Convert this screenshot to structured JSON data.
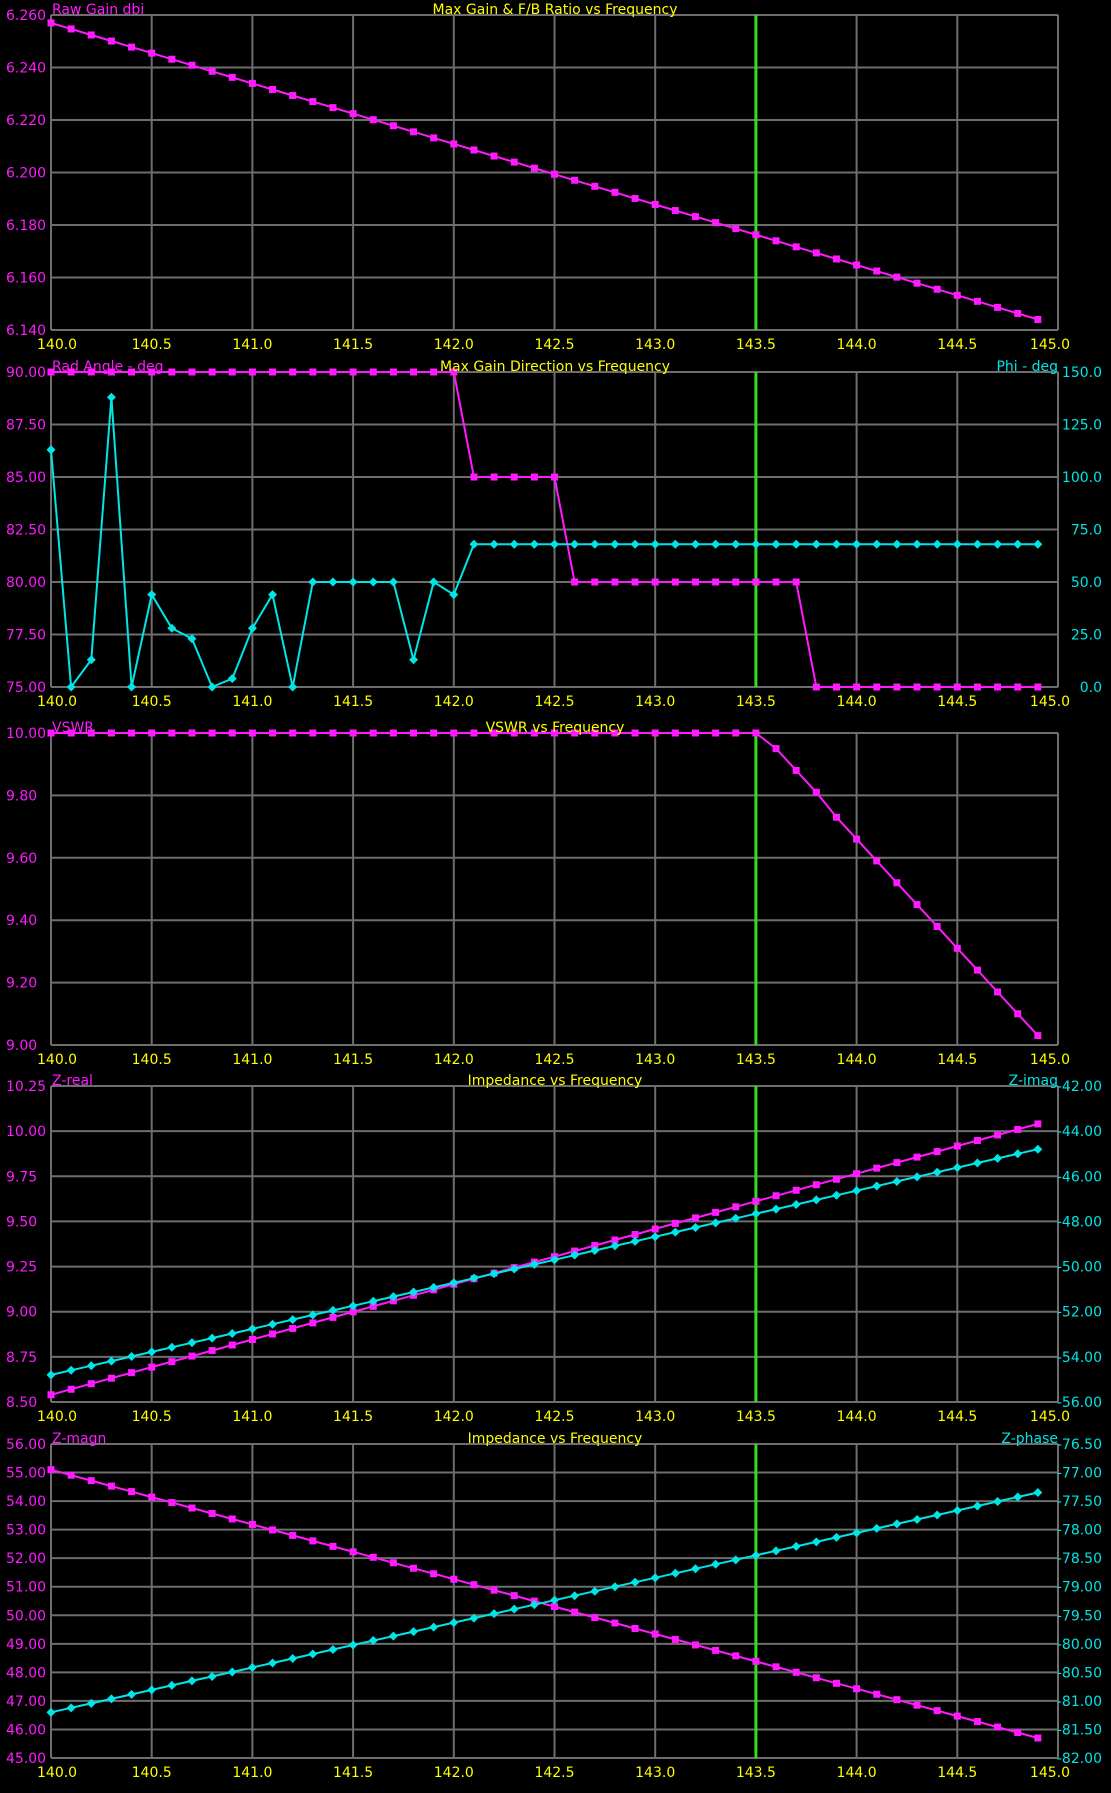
{
  "colors": {
    "background": "#000000",
    "grid": "#6e6e6e",
    "primary": "#ff1aff",
    "secondary": "#00e5e5",
    "title": "#ffff00",
    "axis_text": "#ffff00",
    "marker": "#33dd22"
  },
  "marker_frequency": 143.5,
  "chart_data": [
    {
      "type": "line",
      "title": "Max Gain & F/B Ratio vs Frequency",
      "xlabel": "",
      "y_left_label": "Raw Gain dbi",
      "y_right_label": "",
      "xlim": [
        140.0,
        145.0
      ],
      "ylim_left": [
        6.14,
        6.26
      ],
      "x_ticks": [
        "140.0",
        "140.5",
        "141.0",
        "141.5",
        "142.0",
        "142.5",
        "143.0",
        "143.5",
        "144.0",
        "144.5",
        "145.0"
      ],
      "y_left_ticks": [
        "6.260",
        "6.240",
        "6.220",
        "6.200",
        "6.180",
        "6.160",
        "6.140"
      ],
      "y_left_tick_values": [
        6.26,
        6.24,
        6.22,
        6.2,
        6.18,
        6.16,
        6.14
      ],
      "y_right_ticks": [],
      "y_right_tick_values": [],
      "grid": true,
      "series": [
        {
          "name": "",
          "axis": "left",
          "color_key": "primary",
          "marker": "square",
          "shape": "linear",
          "start": 6.257,
          "end": 6.144
        }
      ]
    },
    {
      "type": "line",
      "title": "Max Gain Direction vs Frequency",
      "xlabel": "",
      "y_left_label": "Rad Angle - deg",
      "y_right_label": "Phi - deg",
      "xlim": [
        140.0,
        145.0
      ],
      "ylim_left": [
        75.0,
        90.0
      ],
      "ylim_right": [
        0.0,
        150.0
      ],
      "x_ticks": [
        "140.0",
        "140.5",
        "141.0",
        "141.5",
        "142.0",
        "142.5",
        "143.0",
        "143.5",
        "144.0",
        "144.5",
        "145.0"
      ],
      "y_left_ticks": [
        "90.00",
        "87.50",
        "85.00",
        "82.50",
        "80.00",
        "77.50",
        "75.00"
      ],
      "y_left_tick_values": [
        90,
        87.5,
        85,
        82.5,
        80,
        77.5,
        75
      ],
      "y_right_ticks": [
        "150.0",
        "125.0",
        "100.0",
        "75.0",
        "50.0",
        "25.0",
        "0.0"
      ],
      "y_right_tick_values": [
        150,
        125,
        100,
        75,
        50,
        25,
        0
      ],
      "grid": true,
      "series": [
        {
          "name": "",
          "axis": "left",
          "color_key": "primary",
          "marker": "square",
          "values": [
            90,
            90,
            90,
            90,
            90,
            90,
            90,
            90,
            90,
            90,
            90,
            90,
            90,
            90,
            90,
            90,
            90,
            90,
            90,
            90,
            90,
            85,
            85,
            85,
            85,
            85,
            80,
            80,
            80,
            80,
            80,
            80,
            80,
            80,
            80,
            80,
            80,
            80,
            75,
            75,
            75,
            75,
            75,
            75,
            75,
            75,
            75,
            75,
            75,
            75
          ]
        },
        {
          "name": "",
          "axis": "right",
          "color_key": "secondary",
          "marker": "diamond",
          "values": [
            113,
            0,
            13,
            138,
            0,
            44,
            28,
            23,
            0,
            4,
            28,
            44,
            0,
            50,
            50,
            50,
            50,
            50,
            13,
            50,
            44,
            68,
            68,
            68,
            68,
            68,
            68,
            68,
            68,
            68,
            68,
            68,
            68,
            68,
            68,
            68,
            68,
            68,
            68,
            68,
            68,
            68,
            68,
            68,
            68,
            68,
            68,
            68,
            68,
            68
          ]
        }
      ]
    },
    {
      "type": "line",
      "title": "VSWR vs Frequency",
      "xlabel": "",
      "y_left_label": "VSWR",
      "y_right_label": "",
      "xlim": [
        140.0,
        145.0
      ],
      "ylim_left": [
        9.0,
        10.0
      ],
      "x_ticks": [
        "140.0",
        "140.5",
        "141.0",
        "141.5",
        "142.0",
        "142.5",
        "143.0",
        "143.5",
        "144.0",
        "144.5",
        "145.0"
      ],
      "y_left_ticks": [
        "10.00",
        "9.80",
        "9.60",
        "9.40",
        "9.20",
        "9.00"
      ],
      "y_left_tick_values": [
        10,
        9.8,
        9.6,
        9.4,
        9.2,
        9.0
      ],
      "y_right_ticks": [],
      "y_right_tick_values": [],
      "grid": true,
      "series": [
        {
          "name": "",
          "axis": "left",
          "color_key": "primary",
          "marker": "square",
          "values": [
            10,
            10,
            10,
            10,
            10,
            10,
            10,
            10,
            10,
            10,
            10,
            10,
            10,
            10,
            10,
            10,
            10,
            10,
            10,
            10,
            10,
            10,
            10,
            10,
            10,
            10,
            10,
            10,
            10,
            10,
            10,
            10,
            10,
            10,
            10,
            10,
            9.95,
            9.88,
            9.81,
            9.73,
            9.66,
            9.59,
            9.52,
            9.45,
            9.38,
            9.31,
            9.24,
            9.17,
            9.1,
            9.03
          ]
        }
      ]
    },
    {
      "type": "line",
      "title": "Impedance vs Frequency",
      "xlabel": "",
      "y_left_label": "Z-real",
      "y_right_label": "Z-imag",
      "xlim": [
        140.0,
        145.0
      ],
      "ylim_left": [
        8.5,
        10.25
      ],
      "ylim_right": [
        -56.0,
        -42.0
      ],
      "x_ticks": [
        "140.0",
        "140.5",
        "141.0",
        "141.5",
        "142.0",
        "142.5",
        "143.0",
        "143.5",
        "144.0",
        "144.5",
        "145.0"
      ],
      "y_left_ticks": [
        "10.25",
        "10.00",
        "9.75",
        "9.50",
        "9.25",
        "9.00",
        "8.75",
        "8.50"
      ],
      "y_left_tick_values": [
        10.25,
        10.0,
        9.75,
        9.5,
        9.25,
        9.0,
        8.75,
        8.5
      ],
      "y_right_ticks": [
        "-42.00",
        "-44.00",
        "-46.00",
        "-48.00",
        "-50.00",
        "-52.00",
        "-54.00",
        "-56.00"
      ],
      "y_right_tick_values": [
        -42,
        -44,
        -46,
        -48,
        -50,
        -52,
        -54,
        -56
      ],
      "grid": true,
      "series": [
        {
          "name": "",
          "axis": "left",
          "color_key": "primary",
          "marker": "square",
          "shape": "linear",
          "start": 8.54,
          "end": 10.04
        },
        {
          "name": "",
          "axis": "right",
          "color_key": "secondary",
          "marker": "diamond",
          "shape": "linear",
          "start": -54.8,
          "end": -44.8
        }
      ]
    },
    {
      "type": "line",
      "title": "Impedance vs Frequency",
      "xlabel": "",
      "y_left_label": "Z-magn",
      "y_right_label": "Z-phase",
      "xlim": [
        140.0,
        145.0
      ],
      "ylim_left": [
        45.0,
        56.0
      ],
      "ylim_right": [
        -82.0,
        -76.5
      ],
      "x_ticks": [
        "140.0",
        "140.5",
        "141.0",
        "141.5",
        "142.0",
        "142.5",
        "143.0",
        "143.5",
        "144.0",
        "144.5",
        "145.0"
      ],
      "y_left_ticks": [
        "56.00",
        "55.00",
        "54.00",
        "53.00",
        "52.00",
        "51.00",
        "50.00",
        "49.00",
        "48.00",
        "47.00",
        "46.00",
        "45.00"
      ],
      "y_left_tick_values": [
        56,
        55,
        54,
        53,
        52,
        51,
        50,
        49,
        48,
        47,
        46,
        45
      ],
      "y_right_ticks": [
        "-76.50",
        "-77.00",
        "-77.50",
        "-78.00",
        "-78.50",
        "-79.00",
        "-79.50",
        "-80.00",
        "-80.50",
        "-81.00",
        "-81.50",
        "-82.00"
      ],
      "y_right_tick_values": [
        -76.5,
        -77,
        -77.5,
        -78,
        -78.5,
        -79,
        -79.5,
        -80,
        -80.5,
        -81,
        -81.5,
        -82
      ],
      "grid": true,
      "series": [
        {
          "name": "",
          "axis": "left",
          "color_key": "primary",
          "marker": "square",
          "shape": "linear",
          "start": 55.1,
          "end": 45.7
        },
        {
          "name": "",
          "axis": "right",
          "color_key": "secondary",
          "marker": "diamond",
          "shape": "linear",
          "start": -81.2,
          "end": -77.35
        }
      ]
    }
  ]
}
